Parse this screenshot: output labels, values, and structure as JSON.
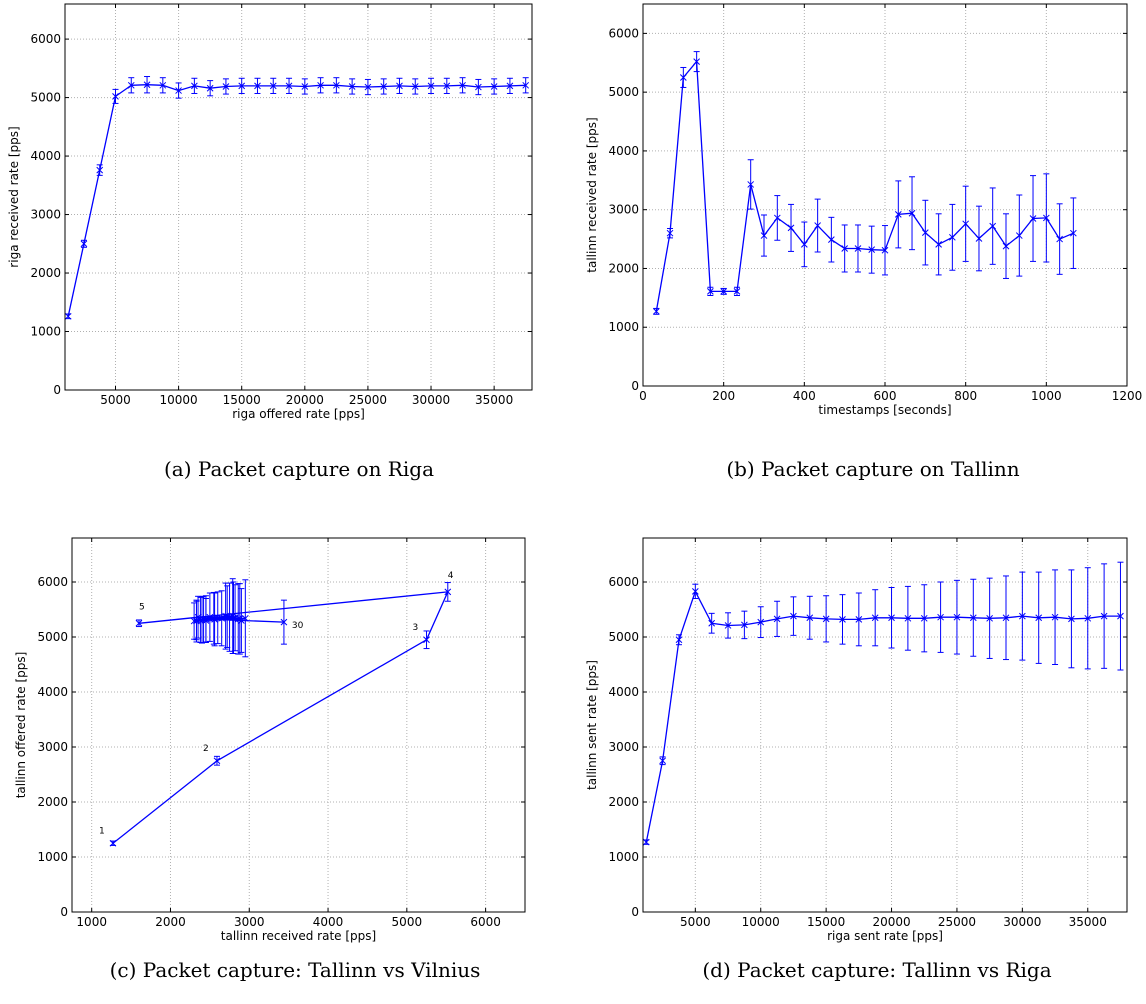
{
  "captions": {
    "a": "(a) Packet capture on Riga",
    "b": "(b) Packet capture on Tallinn",
    "c": "(c) Packet capture: Tallinn vs Vilnius",
    "d": "(d) Packet capture: Tallinn vs Riga"
  },
  "colors": {
    "series": "#0000ff",
    "grid": "#b0b0b0",
    "axes": "#000000",
    "background": "#ffffff"
  },
  "chart_data": [
    {
      "id": "a",
      "type": "line",
      "xlabel": "riga offered rate [pps]",
      "ylabel": "riga received rate [pps]",
      "xlim": [
        1000,
        38000
      ],
      "ylim": [
        0,
        6600
      ],
      "xticks": [
        5000,
        10000,
        15000,
        20000,
        25000,
        30000,
        35000
      ],
      "yticks": [
        0,
        1000,
        2000,
        3000,
        4000,
        5000,
        6000
      ],
      "grid": true,
      "marker": "x",
      "x": [
        1250,
        2500,
        3750,
        5000,
        6250,
        7500,
        8750,
        10000,
        11250,
        12500,
        13750,
        15000,
        16250,
        17500,
        18750,
        20000,
        21250,
        22500,
        23750,
        25000,
        26250,
        27500,
        28750,
        30000,
        31250,
        32500,
        33750,
        35000,
        36250,
        37500
      ],
      "y": [
        1260,
        2500,
        3760,
        5020,
        5210,
        5220,
        5210,
        5120,
        5200,
        5160,
        5190,
        5200,
        5200,
        5200,
        5200,
        5190,
        5210,
        5210,
        5190,
        5180,
        5190,
        5200,
        5190,
        5200,
        5200,
        5210,
        5180,
        5190,
        5200,
        5210
      ],
      "err": [
        40,
        60,
        90,
        120,
        130,
        140,
        130,
        130,
        130,
        130,
        130,
        130,
        130,
        130,
        130,
        130,
        130,
        130,
        130,
        130,
        130,
        130,
        130,
        130,
        130,
        130,
        130,
        130,
        130,
        130
      ]
    },
    {
      "id": "b",
      "type": "line",
      "xlabel": "timestamps [seconds]",
      "ylabel": "tallinn received rate [pps]",
      "xlim": [
        0,
        1200
      ],
      "ylim": [
        0,
        6500
      ],
      "xticks": [
        0,
        200,
        400,
        600,
        800,
        1000,
        1200
      ],
      "yticks": [
        0,
        1000,
        2000,
        3000,
        4000,
        5000,
        6000
      ],
      "grid": true,
      "marker": "x",
      "x": [
        33,
        67,
        100,
        133,
        167,
        200,
        233,
        267,
        300,
        333,
        367,
        400,
        433,
        467,
        500,
        533,
        567,
        600,
        633,
        667,
        700,
        733,
        767,
        800,
        833,
        867,
        900,
        933,
        967,
        1000,
        1033,
        1067
      ],
      "y": [
        1270,
        2600,
        5250,
        5520,
        1610,
        1610,
        1610,
        3430,
        2560,
        2860,
        2690,
        2410,
        2730,
        2490,
        2340,
        2340,
        2320,
        2310,
        2920,
        2940,
        2610,
        2410,
        2530,
        2760,
        2510,
        2720,
        2380,
        2560,
        2850,
        2860,
        2500,
        2600
      ],
      "err": [
        50,
        80,
        170,
        170,
        70,
        50,
        70,
        420,
        350,
        380,
        400,
        380,
        450,
        380,
        400,
        400,
        400,
        420,
        570,
        620,
        550,
        520,
        560,
        640,
        550,
        650,
        550,
        690,
        730,
        750,
        600,
        600
      ]
    },
    {
      "id": "c",
      "type": "line",
      "xlabel": "tallinn received rate [pps]",
      "ylabel": "tallinn offered rate [pps]",
      "xlim": [
        750,
        6500
      ],
      "ylim": [
        0,
        6800
      ],
      "xticks": [
        1000,
        2000,
        3000,
        4000,
        5000,
        6000
      ],
      "yticks": [
        0,
        1000,
        2000,
        3000,
        4000,
        5000,
        6000
      ],
      "grid": true,
      "marker": "x",
      "x": [
        1270,
        2590,
        5250,
        5520,
        1600,
        2350,
        2900,
        2450,
        2700,
        2330,
        2800,
        2550,
        2400,
        2750,
        2860,
        2330,
        2600,
        2720,
        2420,
        2950,
        2300,
        2500,
        2880,
        2650,
        2380,
        2790,
        2450,
        2820,
        2560,
        3440
      ],
      "y": [
        1250,
        2750,
        4950,
        5820,
        5250,
        5360,
        5300,
        5330,
        5380,
        5290,
        5350,
        5340,
        5310,
        5360,
        5330,
        5300,
        5350,
        5370,
        5320,
        5340,
        5290,
        5360,
        5330,
        5340,
        5310,
        5380,
        5300,
        5350,
        5320,
        5270
      ],
      "err": [
        40,
        80,
        160,
        170,
        60,
        380,
        580,
        420,
        600,
        380,
        650,
        470,
        420,
        620,
        640,
        350,
        470,
        560,
        420,
        700,
        330,
        440,
        640,
        500,
        410,
        680,
        400,
        600,
        480,
        400
      ],
      "annotations": [
        {
          "text": "1",
          "point": 0
        },
        {
          "text": "2",
          "point": 1
        },
        {
          "text": "3",
          "point": 2
        },
        {
          "text": "4",
          "point": 3
        },
        {
          "text": "5",
          "point": 4
        },
        {
          "text": "30",
          "point": 29
        }
      ]
    },
    {
      "id": "d",
      "type": "line",
      "xlabel": "riga sent rate [pps]",
      "ylabel": "tallinn sent rate [pps]",
      "xlim": [
        1000,
        38000
      ],
      "ylim": [
        0,
        6800
      ],
      "xticks": [
        5000,
        10000,
        15000,
        20000,
        25000,
        30000,
        35000
      ],
      "yticks": [
        0,
        1000,
        2000,
        3000,
        4000,
        5000,
        6000
      ],
      "grid": true,
      "marker": "x",
      "x": [
        1250,
        2500,
        3750,
        5000,
        6250,
        7500,
        8750,
        10000,
        11250,
        12500,
        13750,
        15000,
        16250,
        17500,
        18750,
        20000,
        21250,
        22500,
        23750,
        25000,
        26250,
        27500,
        28750,
        30000,
        31250,
        32500,
        33750,
        35000,
        36250,
        37500
      ],
      "y": [
        1270,
        2750,
        4950,
        5830,
        5250,
        5210,
        5220,
        5270,
        5330,
        5380,
        5350,
        5330,
        5320,
        5320,
        5350,
        5350,
        5340,
        5340,
        5360,
        5360,
        5350,
        5340,
        5350,
        5380,
        5350,
        5360,
        5330,
        5340,
        5380,
        5380
      ],
      "err": [
        40,
        70,
        90,
        130,
        180,
        230,
        250,
        280,
        320,
        350,
        390,
        420,
        450,
        480,
        510,
        550,
        580,
        610,
        640,
        670,
        700,
        730,
        760,
        800,
        830,
        860,
        890,
        920,
        950,
        980
      ]
    }
  ]
}
